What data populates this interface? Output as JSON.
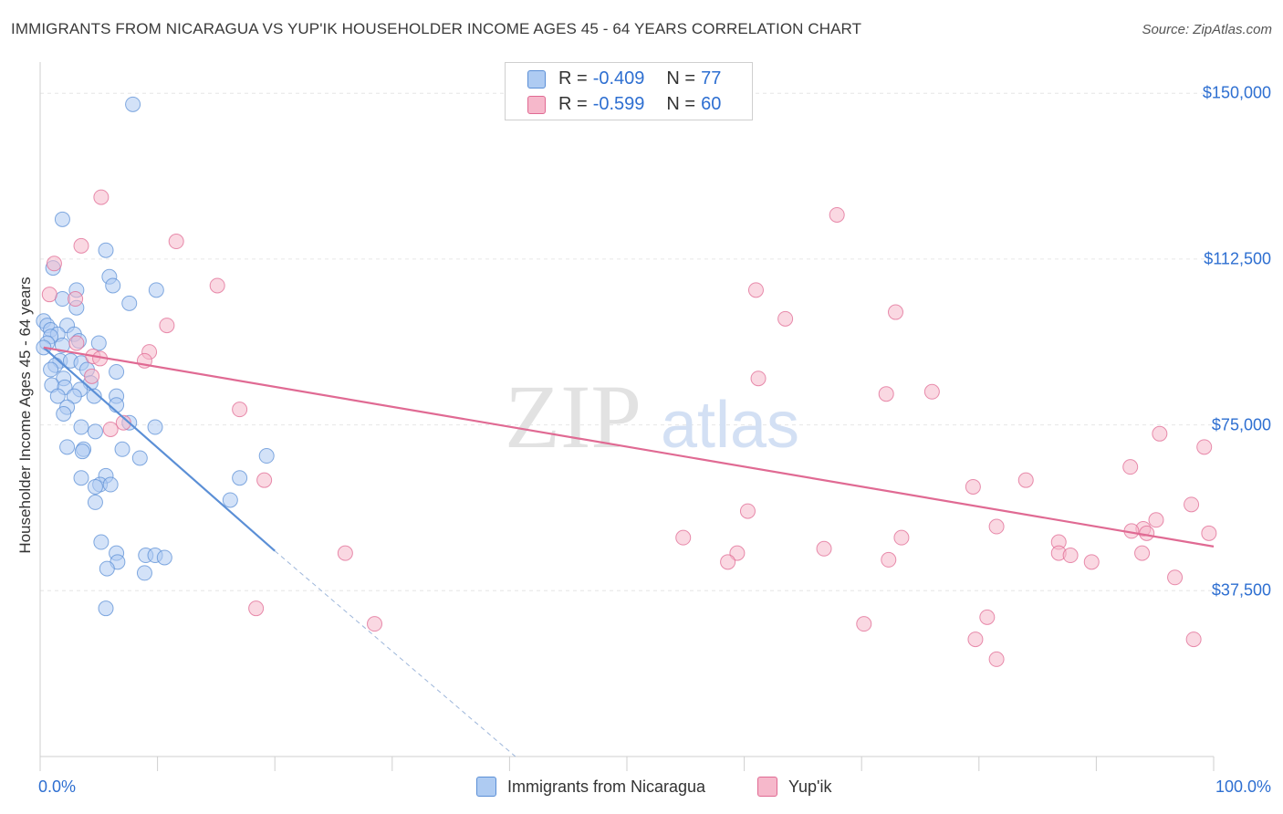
{
  "title": "IMMIGRANTS FROM NICARAGUA VS YUP'IK HOUSEHOLDER INCOME AGES 45 - 64 YEARS CORRELATION CHART",
  "source": "Source: ZipAtlas.com",
  "watermark": {
    "zip": "ZIP",
    "atlas": "atlas"
  },
  "legend": {
    "rows": [
      {
        "r_label": "R =",
        "r_value": "-0.409",
        "n_label": "N =",
        "n_value": "77",
        "color": "#aecbf2"
      },
      {
        "r_label": "R =",
        "r_value": "-0.599",
        "n_label": "N =",
        "n_value": "60",
        "color": "#f6b8cb"
      }
    ]
  },
  "chart_data": {
    "type": "scatter",
    "ylabel": "Householder Income Ages 45 - 64 years",
    "xlim": [
      0,
      100
    ],
    "ylim": [
      0,
      155000
    ],
    "x_tick_labels": [
      "0.0%",
      "100.0%"
    ],
    "y_ticks": [
      {
        "value": 37500,
        "label": "$37,500"
      },
      {
        "value": 75000,
        "label": "$75,000"
      },
      {
        "value": 112500,
        "label": "$112,500"
      },
      {
        "value": 150000,
        "label": "$150,000"
      }
    ],
    "grid": true,
    "series": [
      {
        "name": "Immigrants from Nicaragua",
        "color": "#5b8fd6",
        "fill": "#aecbf2",
        "trend": {
          "x": [
            0.3,
            20
          ],
          "y": [
            92500,
            46500
          ]
        },
        "trend_extension": {
          "x": [
            20,
            40.5
          ],
          "y": [
            46500,
            0
          ]
        },
        "points": [
          [
            7.9,
            147500
          ],
          [
            1.9,
            121500
          ],
          [
            5.6,
            114500
          ],
          [
            1.1,
            110500
          ],
          [
            5.9,
            108500
          ],
          [
            6.2,
            106500
          ],
          [
            3.1,
            105500
          ],
          [
            9.9,
            105500
          ],
          [
            1.9,
            103500
          ],
          [
            3.1,
            101500
          ],
          [
            7.6,
            102500
          ],
          [
            0.3,
            98500
          ],
          [
            0.6,
            97500
          ],
          [
            0.9,
            96500
          ],
          [
            2.3,
            97500
          ],
          [
            1.5,
            95500
          ],
          [
            2.9,
            95500
          ],
          [
            0.9,
            95000
          ],
          [
            3.3,
            94000
          ],
          [
            0.6,
            93500
          ],
          [
            5.0,
            93500
          ],
          [
            1.9,
            93000
          ],
          [
            0.3,
            92500
          ],
          [
            1.7,
            89500
          ],
          [
            2.6,
            89500
          ],
          [
            3.5,
            89000
          ],
          [
            1.3,
            88500
          ],
          [
            0.9,
            87500
          ],
          [
            4.0,
            87500
          ],
          [
            6.5,
            87000
          ],
          [
            2.0,
            85500
          ],
          [
            4.3,
            84500
          ],
          [
            1.0,
            84000
          ],
          [
            2.1,
            83500
          ],
          [
            3.4,
            83000
          ],
          [
            1.5,
            81500
          ],
          [
            2.9,
            81500
          ],
          [
            4.6,
            81500
          ],
          [
            6.5,
            81500
          ],
          [
            2.3,
            79000
          ],
          [
            6.5,
            79500
          ],
          [
            2.0,
            77500
          ],
          [
            7.6,
            75500
          ],
          [
            3.5,
            74500
          ],
          [
            9.8,
            74500
          ],
          [
            4.7,
            73500
          ],
          [
            2.3,
            70000
          ],
          [
            3.7,
            69500
          ],
          [
            3.6,
            69000
          ],
          [
            7.0,
            69500
          ],
          [
            8.5,
            67500
          ],
          [
            19.3,
            68000
          ],
          [
            3.5,
            63000
          ],
          [
            5.6,
            63500
          ],
          [
            5.1,
            61500
          ],
          [
            6.0,
            61500
          ],
          [
            4.7,
            61000
          ],
          [
            17.0,
            63000
          ],
          [
            4.7,
            57500
          ],
          [
            16.2,
            58000
          ],
          [
            5.2,
            48500
          ],
          [
            6.5,
            46000
          ],
          [
            9.0,
            45500
          ],
          [
            9.8,
            45500
          ],
          [
            10.6,
            45000
          ],
          [
            6.6,
            44000
          ],
          [
            5.7,
            42500
          ],
          [
            8.9,
            41500
          ],
          [
            5.6,
            33500
          ]
        ]
      },
      {
        "name": "Yup'ik",
        "color": "#e06a93",
        "fill": "#f6b8cb",
        "trend": {
          "x": [
            0.3,
            100
          ],
          "y": [
            92500,
            47500
          ]
        },
        "points": [
          [
            5.2,
            126500
          ],
          [
            67.9,
            122500
          ],
          [
            11.6,
            116500
          ],
          [
            3.5,
            115500
          ],
          [
            1.2,
            111500
          ],
          [
            15.1,
            106500
          ],
          [
            61.0,
            105500
          ],
          [
            0.8,
            104500
          ],
          [
            3.0,
            103500
          ],
          [
            72.9,
            100500
          ],
          [
            63.5,
            99000
          ],
          [
            10.8,
            97500
          ],
          [
            3.1,
            93500
          ],
          [
            9.3,
            91500
          ],
          [
            4.5,
            90500
          ],
          [
            5.1,
            90000
          ],
          [
            8.9,
            89500
          ],
          [
            4.4,
            86000
          ],
          [
            61.2,
            85500
          ],
          [
            72.1,
            82000
          ],
          [
            76.0,
            82500
          ],
          [
            17.0,
            78500
          ],
          [
            7.1,
            75500
          ],
          [
            6.0,
            74000
          ],
          [
            95.4,
            73000
          ],
          [
            99.2,
            70000
          ],
          [
            92.9,
            65500
          ],
          [
            19.1,
            62500
          ],
          [
            84.0,
            62500
          ],
          [
            79.5,
            61000
          ],
          [
            98.1,
            57000
          ],
          [
            60.3,
            55500
          ],
          [
            95.1,
            53500
          ],
          [
            81.5,
            52000
          ],
          [
            94.0,
            51500
          ],
          [
            93.0,
            51000
          ],
          [
            94.3,
            50500
          ],
          [
            99.6,
            50500
          ],
          [
            54.8,
            49500
          ],
          [
            73.4,
            49500
          ],
          [
            86.8,
            48500
          ],
          [
            66.8,
            47000
          ],
          [
            26.0,
            46000
          ],
          [
            59.4,
            46000
          ],
          [
            86.8,
            46000
          ],
          [
            87.8,
            45500
          ],
          [
            93.9,
            46000
          ],
          [
            72.3,
            44500
          ],
          [
            89.6,
            44000
          ],
          [
            58.6,
            44000
          ],
          [
            96.7,
            40500
          ],
          [
            18.4,
            33500
          ],
          [
            80.7,
            31500
          ],
          [
            28.5,
            30000
          ],
          [
            70.2,
            30000
          ],
          [
            79.7,
            26500
          ],
          [
            98.3,
            26500
          ],
          [
            81.5,
            22000
          ]
        ]
      }
    ]
  }
}
